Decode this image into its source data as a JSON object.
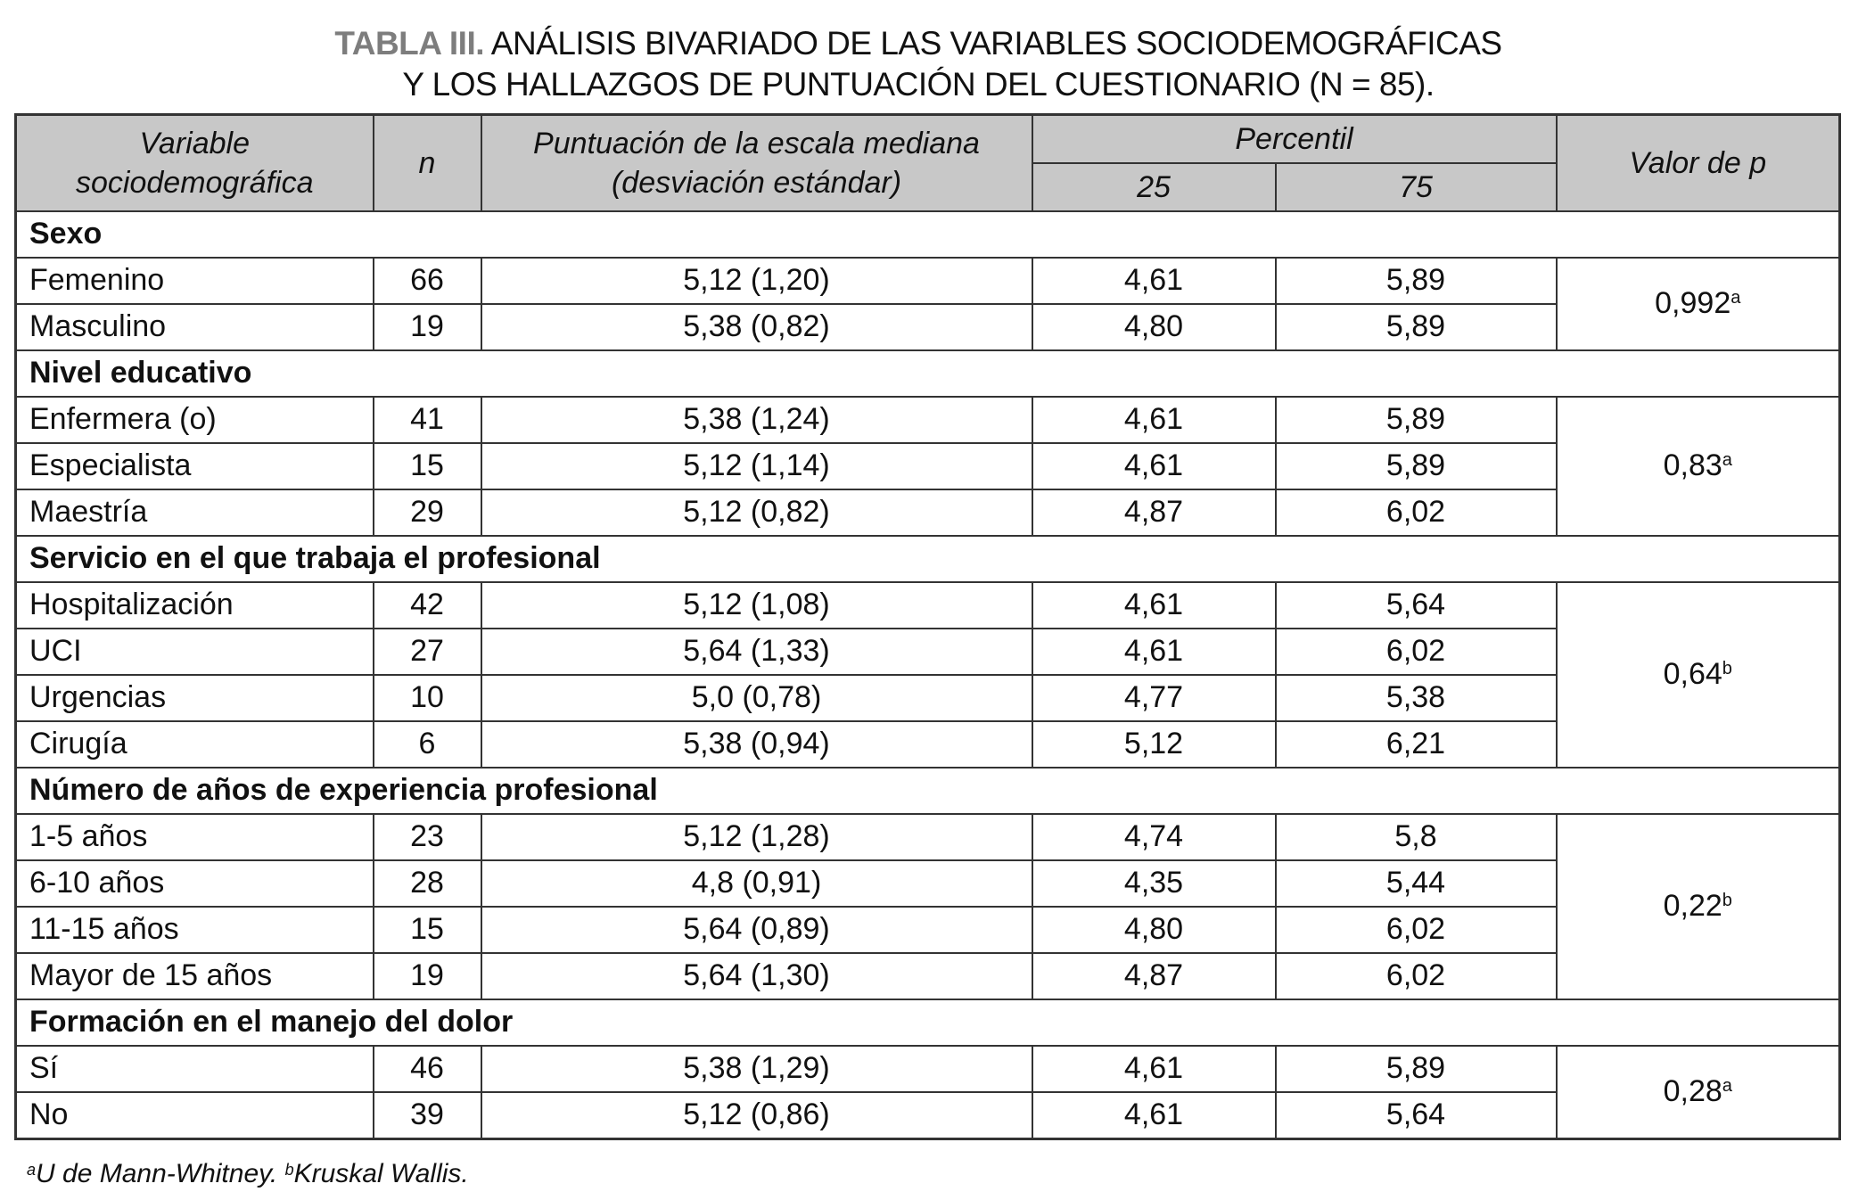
{
  "title": {
    "label": "TABLA III.",
    "line1": "ANÁLISIS BIVARIADO DE LAS VARIABLES SOCIODEMOGRÁFICAS",
    "line2": "Y LOS HALLAZGOS DE PUNTUACIÓN DEL CUESTIONARIO (N = 85)."
  },
  "header": {
    "variable": "Variable sociodemográfica",
    "n": "n",
    "score": "Puntuación de la escala mediana (desviación estándar)",
    "percentile": "Percentil",
    "p25": "25",
    "p75": "75",
    "pvalue": "Valor de p"
  },
  "colors": {
    "header_bg": "#c8c8c8",
    "title_label": "#7d7d7d"
  },
  "sections": [
    {
      "name": "Sexo",
      "p": "0,992",
      "sup": "a",
      "rows": [
        {
          "var": "Femenino",
          "n": "66",
          "score": "5,12 (1,20)",
          "p25": "4,61",
          "p75": "5,89"
        },
        {
          "var": "Masculino",
          "n": "19",
          "score": "5,38 (0,82)",
          "p25": "4,80",
          "p75": "5,89"
        }
      ]
    },
    {
      "name": "Nivel educativo",
      "p": "0,83",
      "sup": "a",
      "rows": [
        {
          "var": "Enfermera (o)",
          "n": "41",
          "score": "5,38 (1,24)",
          "p25": "4,61",
          "p75": "5,89"
        },
        {
          "var": "Especialista",
          "n": "15",
          "score": "5,12 (1,14)",
          "p25": "4,61",
          "p75": "5,89"
        },
        {
          "var": "Maestría",
          "n": "29",
          "score": "5,12 (0,82)",
          "p25": "4,87",
          "p75": "6,02"
        }
      ]
    },
    {
      "name": "Servicio en el que trabaja el profesional",
      "p": "0,64",
      "sup": "b",
      "rows": [
        {
          "var": "Hospitalización",
          "n": "42",
          "score": "5,12 (1,08)",
          "p25": "4,61",
          "p75": "5,64"
        },
        {
          "var": "UCI",
          "n": "27",
          "score": "5,64 (1,33)",
          "p25": "4,61",
          "p75": "6,02"
        },
        {
          "var": "Urgencias",
          "n": "10",
          "score": "5,0 (0,78)",
          "p25": "4,77",
          "p75": "5,38"
        },
        {
          "var": "Cirugía",
          "n": "6",
          "score": "5,38 (0,94)",
          "p25": "5,12",
          "p75": "6,21"
        }
      ]
    },
    {
      "name": "Número de años de experiencia profesional",
      "p": "0,22",
      "sup": "b",
      "rows": [
        {
          "var": "1-5 años",
          "n": "23",
          "score": "5,12 (1,28)",
          "p25": "4,74",
          "p75": "5,8"
        },
        {
          "var": "6-10 años",
          "n": "28",
          "score": "4,8 (0,91)",
          "p25": "4,35",
          "p75": "5,44"
        },
        {
          "var": "11-15 años",
          "n": "15",
          "score": "5,64 (0,89)",
          "p25": "4,80",
          "p75": "6,02"
        },
        {
          "var": "Mayor de 15 años",
          "n": "19",
          "score": "5,64 (1,30)",
          "p25": "4,87",
          "p75": "6,02"
        }
      ]
    },
    {
      "name": "Formación en el manejo del dolor",
      "p": "0,28",
      "sup": "a",
      "rows": [
        {
          "var": "Sí",
          "n": "46",
          "score": "5,38 (1,29)",
          "p25": "4,61",
          "p75": "5,89"
        },
        {
          "var": "No",
          "n": "39",
          "score": "5,12 (0,86)",
          "p25": "4,61",
          "p75": "5,64"
        }
      ]
    }
  ],
  "footnote": {
    "sup_a": "a",
    "a": "U de Mann-Whitney.",
    "sup_b": "b",
    "b": "Kruskal Wallis."
  }
}
